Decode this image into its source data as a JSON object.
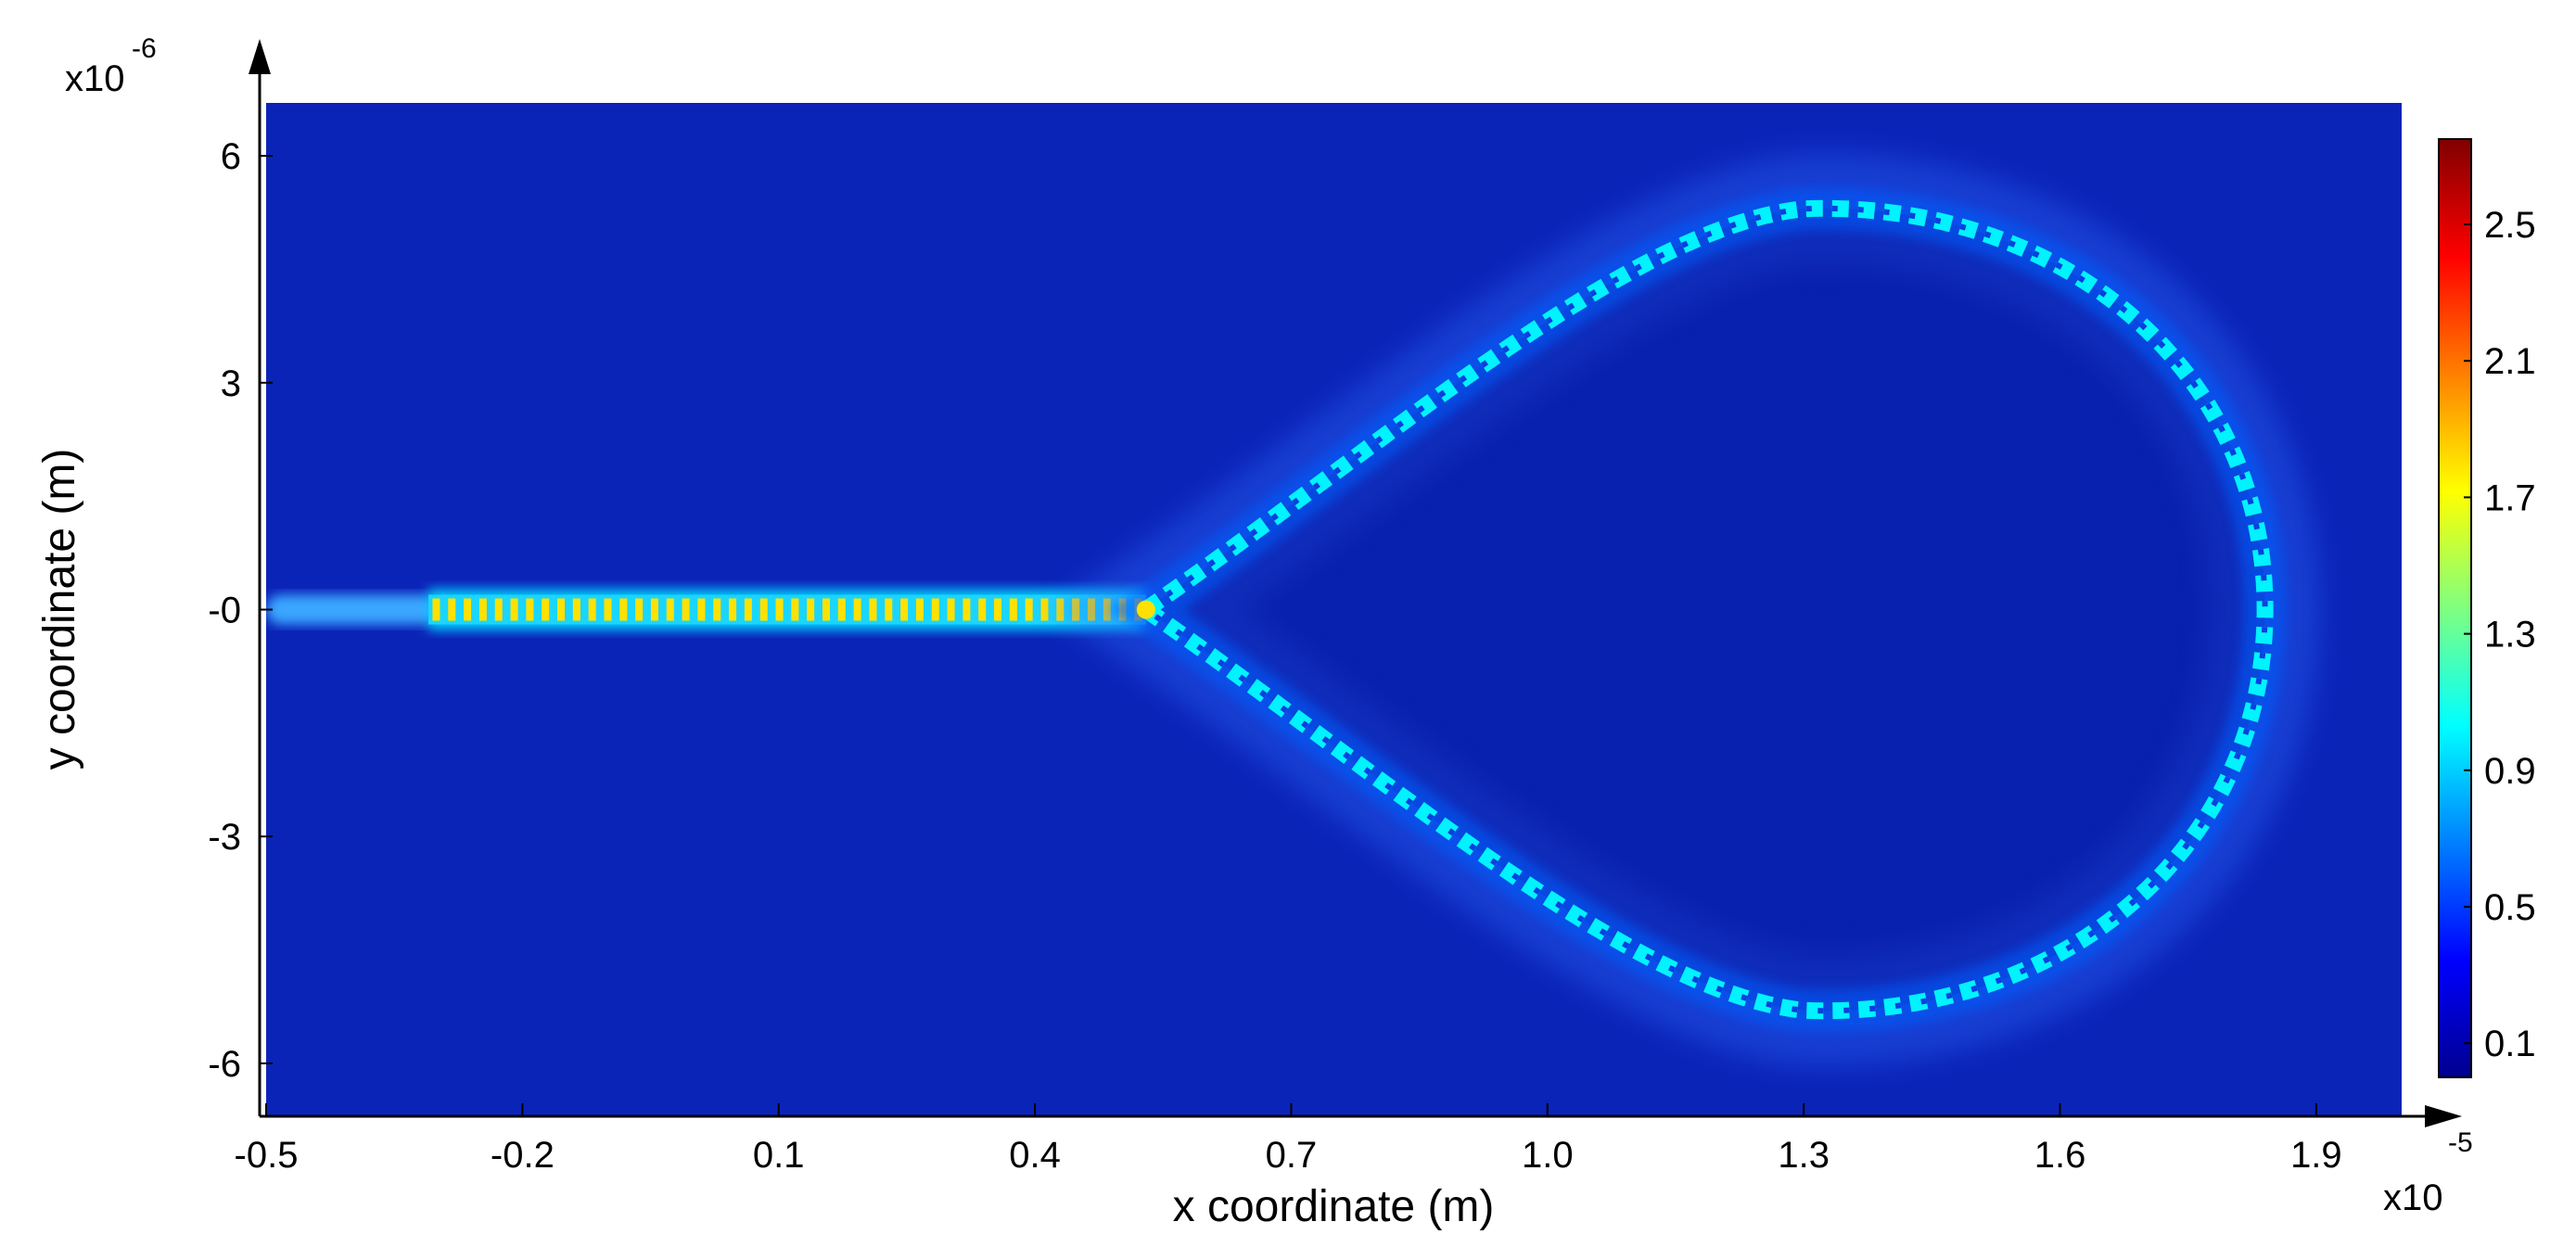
{
  "chart_data": {
    "type": "heatmap",
    "title": "",
    "xlabel": "x coordinate (m)",
    "ylabel": "y coordinate (m)",
    "x_multiplier": {
      "base": "x10",
      "exponent": "-5"
    },
    "y_multiplier": {
      "base": "x10",
      "exponent": "-6"
    },
    "xlim": [
      -0.5,
      2.0
    ],
    "ylim": [
      -6.7,
      6.7
    ],
    "x_ticks": [
      -0.5,
      -0.2,
      0.1,
      0.4,
      0.7,
      1.0,
      1.3,
      1.6,
      1.9
    ],
    "x_tick_labels": [
      "-0.5",
      "-0.2",
      "0.1",
      "0.4",
      "0.7",
      "1.0",
      "1.3",
      "1.6",
      "1.9"
    ],
    "y_ticks": [
      6,
      3,
      0,
      -3,
      -6
    ],
    "y_tick_labels": [
      "6",
      "3",
      "-0",
      "-3",
      "-6"
    ],
    "colorbar": {
      "range": [
        0,
        2.75
      ],
      "ticks": [
        0.1,
        0.5,
        0.9,
        1.3,
        1.7,
        2.1,
        2.5
      ],
      "tick_labels": [
        "0.1",
        "0.5",
        "0.9",
        "1.3",
        "1.7",
        "2.1",
        "2.5"
      ],
      "colormap": "jet"
    },
    "features": {
      "input_waveguide": {
        "x_start": -0.5,
        "x_end": 0.53,
        "y": 0,
        "bright_section_start": -0.31,
        "peak_value": 1.8
      },
      "split_point": {
        "x": 0.53,
        "y": 0
      },
      "loop": {
        "apex_x": 0.53,
        "right_x": 1.84,
        "top_y": 5.3,
        "bottom_y": -5.3,
        "edge_value": 1.0
      },
      "background_value": 0.05
    },
    "grid": false,
    "legend": "colorbar-right"
  }
}
